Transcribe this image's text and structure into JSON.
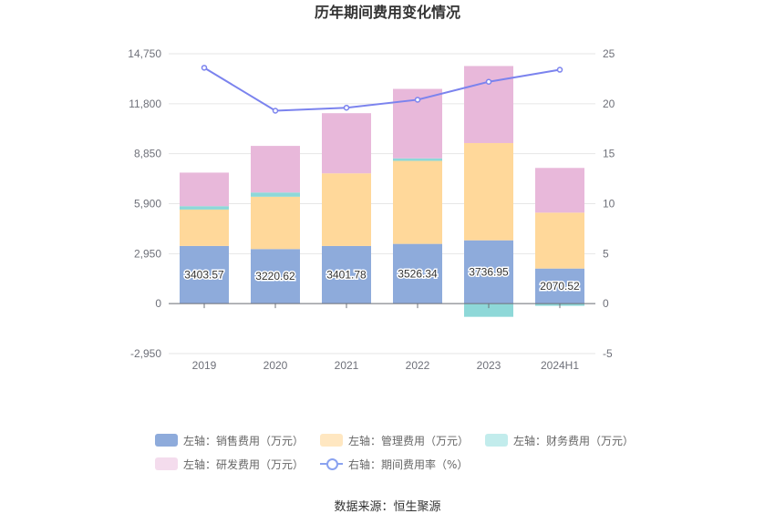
{
  "chart_data": {
    "type": "bar",
    "title": "历年期间费用变化情况",
    "categories": [
      "2019",
      "2020",
      "2021",
      "2022",
      "2023",
      "2024H1"
    ],
    "y_left": {
      "ticks": [
        "-2,950",
        "0",
        "2,950",
        "5,900",
        "8,850",
        "11,800",
        "14,750"
      ],
      "min": -2950,
      "max": 14750
    },
    "y_right": {
      "ticks": [
        "-5",
        "0",
        "5",
        "10",
        "15",
        "20",
        "25"
      ],
      "min": -5,
      "max": 25
    },
    "series": [
      {
        "name": "左轴：销售费用（万元）",
        "color": "#8eabdb",
        "values": [
          3403.57,
          3220.62,
          3401.78,
          3526.34,
          3736.95,
          2070.52
        ],
        "labels": [
          "3403.57",
          "3220.62",
          "3401.78",
          "3526.34",
          "3736.95",
          "2070.52"
        ]
      },
      {
        "name": "左轴：管理费用（万元）",
        "color": "#ffd89a",
        "values": [
          2150,
          3090,
          4290,
          4900,
          5740,
          3300
        ]
      },
      {
        "name": "左轴：财务费用（万元）",
        "color": "#8ed8d8",
        "values": [
          200,
          250,
          0,
          150,
          -780,
          -130
        ]
      },
      {
        "name": "左轴：研发费用（万元）",
        "color": "#e8b8da",
        "values": [
          1980,
          2750,
          3550,
          4100,
          4550,
          2640
        ]
      }
    ],
    "line": {
      "name": "右轴：期间费用率（%）",
      "color": "#7b83ee",
      "values": [
        23.6,
        19.3,
        19.6,
        20.4,
        22.2,
        23.4
      ]
    },
    "grid": true
  },
  "source": "数据来源：恒生聚源"
}
